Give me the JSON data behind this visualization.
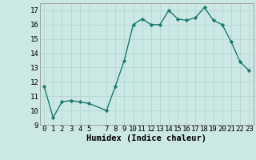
{
  "x": [
    0,
    1,
    2,
    3,
    4,
    5,
    7,
    8,
    9,
    10,
    11,
    12,
    13,
    14,
    15,
    16,
    17,
    18,
    19,
    20,
    21,
    22,
    23
  ],
  "y": [
    11.7,
    9.5,
    10.6,
    10.7,
    10.6,
    10.5,
    10.0,
    11.7,
    13.5,
    16.0,
    16.4,
    16.0,
    16.0,
    17.0,
    16.4,
    16.3,
    16.5,
    17.2,
    16.3,
    16.0,
    14.8,
    13.4,
    12.8
  ],
  "xlabel": "Humidex (Indice chaleur)",
  "xlim": [
    -0.5,
    23.5
  ],
  "ylim": [
    9,
    17.5
  ],
  "yticks": [
    9,
    10,
    11,
    12,
    13,
    14,
    15,
    16,
    17
  ],
  "xticks": [
    0,
    1,
    2,
    3,
    4,
    5,
    7,
    8,
    9,
    10,
    11,
    12,
    13,
    14,
    15,
    16,
    17,
    18,
    19,
    20,
    21,
    22,
    23
  ],
  "line_color": "#1a7a6e",
  "bg_color": "#cce8e4",
  "grid_color": "#b8d8d4",
  "markersize": 2.2,
  "linewidth": 1.0,
  "tick_fontsize": 6.5,
  "xlabel_fontsize": 7.5
}
